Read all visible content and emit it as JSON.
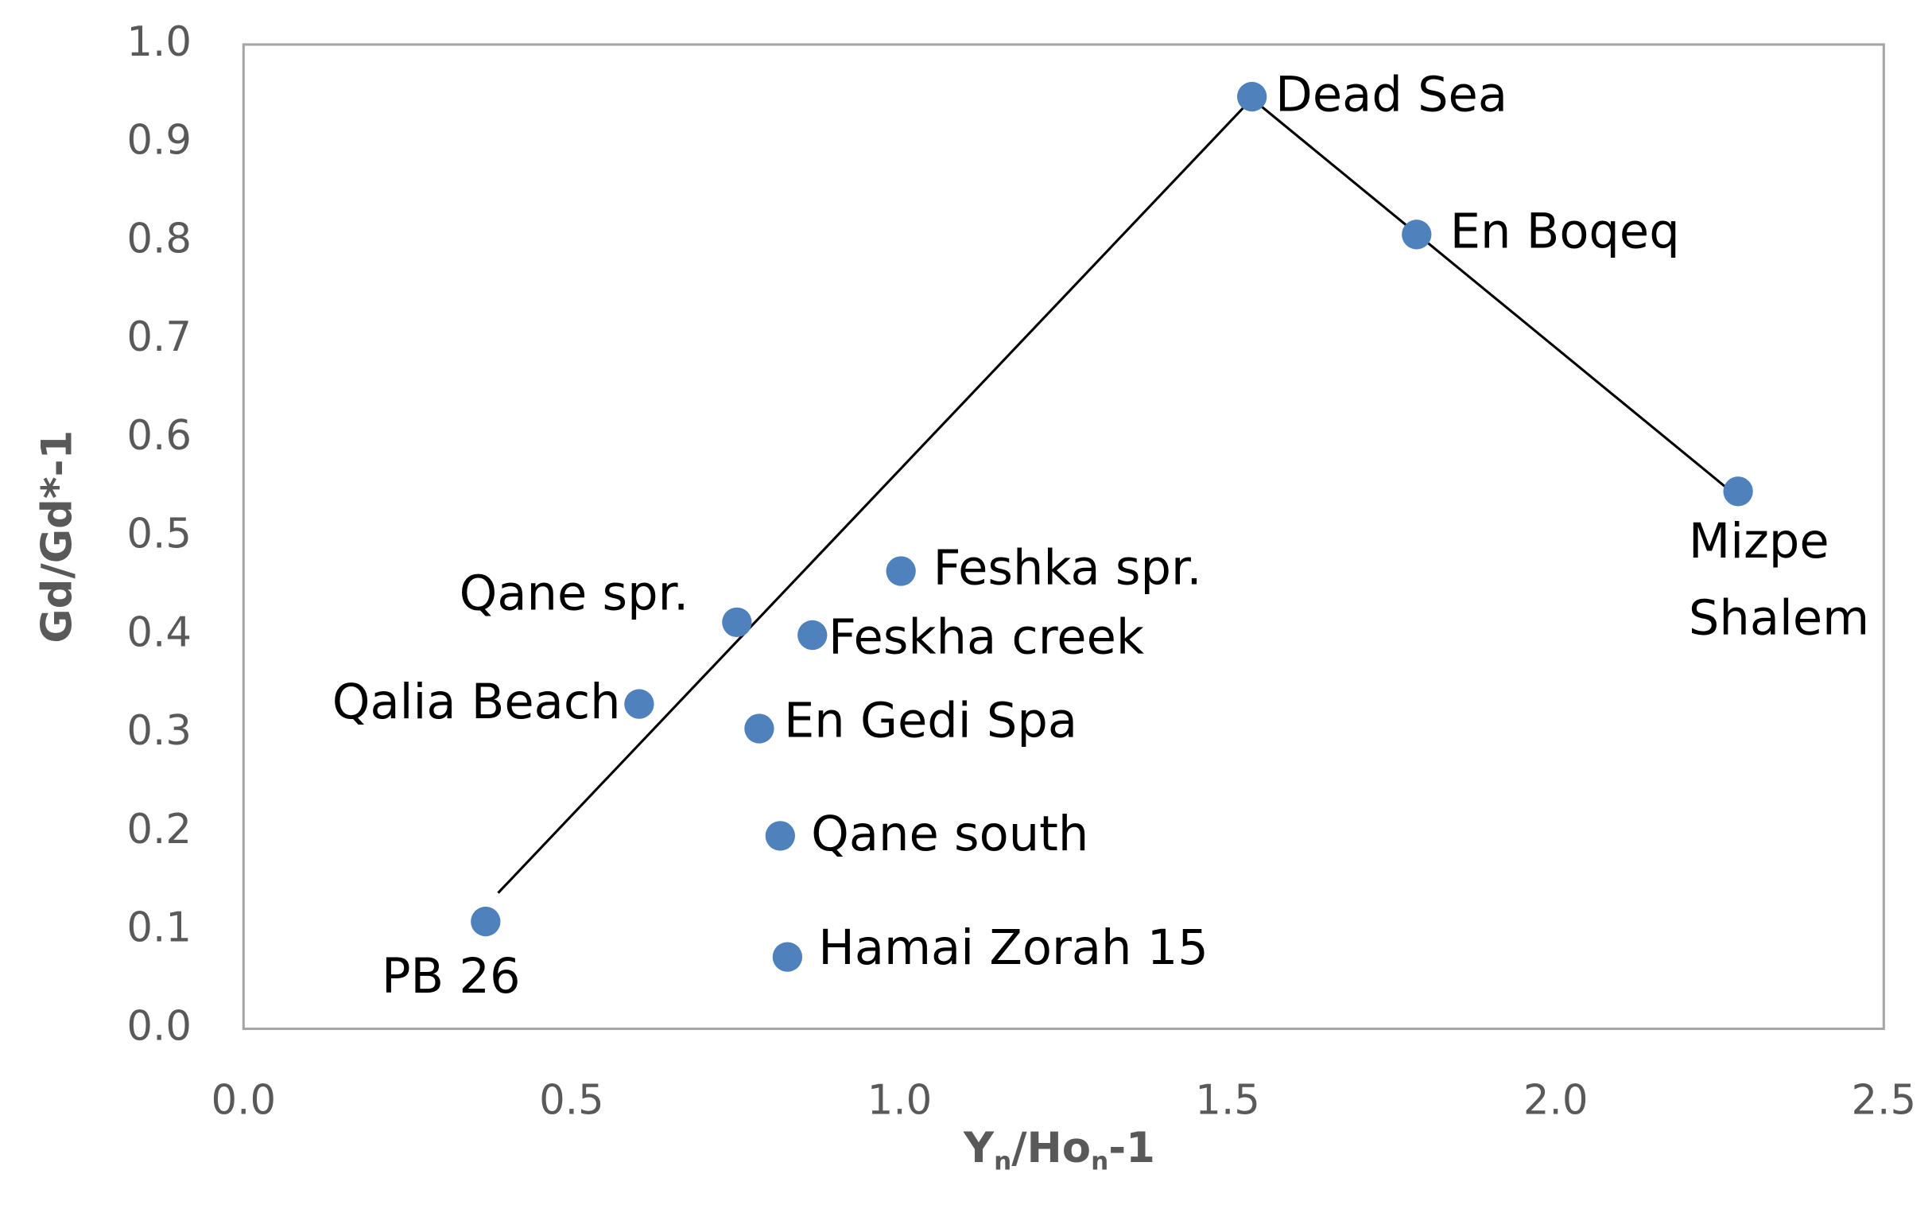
{
  "chart_data": {
    "type": "scatter",
    "xlabel": [
      "Y",
      "n",
      "/Ho",
      "n",
      "-1"
    ],
    "ylabel": "Gd/Gd*-1",
    "series": [
      {
        "color": "#4f81bd",
        "x": [
          0.369,
          0.603,
          0.752,
          0.786,
          0.867,
          0.818,
          0.829,
          1.002,
          1.537,
          1.788,
          2.278
        ],
        "values": [
          0.109,
          0.33,
          0.413,
          0.305,
          0.4,
          0.196,
          0.073,
          0.465,
          0.947,
          0.807,
          0.546
        ],
        "labels": [
          "PB 26",
          "Qalia Beach",
          "Qane spr.",
          "En Gedi Spa",
          "Feskha creek",
          "Qane south",
          "Hamai Zorah 15",
          "Feshka spr.",
          "Dead Sea",
          "En Boqeq",
          [
            "Mizpe",
            "Shalem"
          ]
        ]
      }
    ],
    "trend_line": {
      "color": "#000000",
      "x": [
        0.388,
        1.537,
        2.278
      ],
      "values": [
        0.138,
        0.945,
        0.54
      ]
    },
    "xlim": [
      0,
      2.5
    ],
    "xticks": [
      {
        "value": 0,
        "label": "0.0"
      },
      {
        "value": 0.5,
        "label": "0.5"
      },
      {
        "value": 1,
        "label": "1.0"
      },
      {
        "value": 1.5,
        "label": "1.5"
      },
      {
        "value": 2,
        "label": "2.0"
      },
      {
        "value": 2.5,
        "label": "2.5"
      }
    ],
    "ylim": [
      0,
      1
    ],
    "yticks": [
      {
        "value": 0,
        "label": "0.0"
      },
      {
        "value": 0.1,
        "label": "0.1"
      },
      {
        "value": 0.2,
        "label": "0.2"
      },
      {
        "value": 0.3,
        "label": "0.3"
      },
      {
        "value": 0.4,
        "label": "0.4"
      },
      {
        "value": 0.5,
        "label": "0.5"
      },
      {
        "value": 0.6,
        "label": "0.6"
      },
      {
        "value": 0.7,
        "label": "0.7"
      },
      {
        "value": 0.8,
        "label": "0.8"
      },
      {
        "value": 0.9,
        "label": "0.9"
      },
      {
        "value": 1,
        "label": "1.0"
      }
    ],
    "grid": false
  }
}
